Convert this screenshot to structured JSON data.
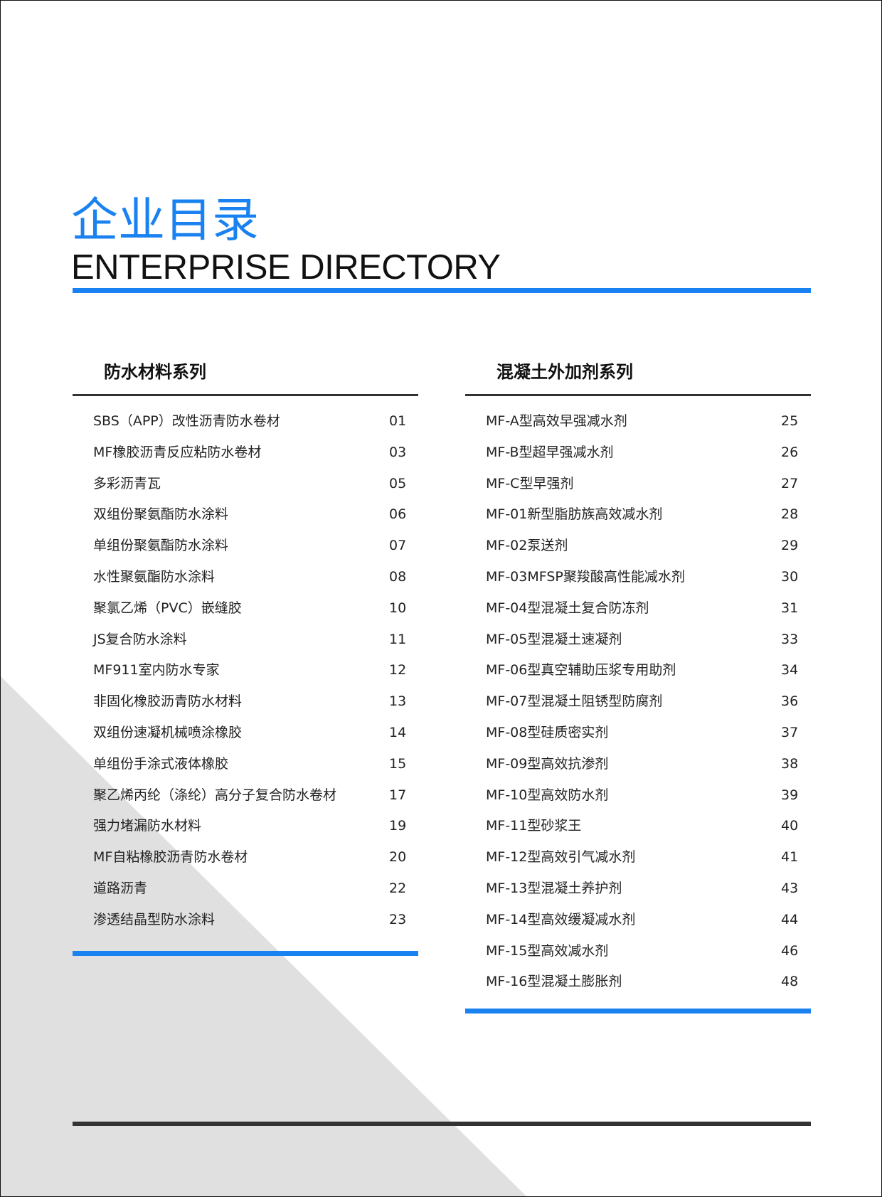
{
  "header": {
    "title_cn": "企业目录",
    "title_en": "ENTERPRISE DIRECTORY",
    "accent_color": "#1a82f0"
  },
  "sections": [
    {
      "title": "防水材料系列",
      "items": [
        {
          "label": "SBS（APP）改性沥青防水卷材",
          "page": "01"
        },
        {
          "label": "MF橡胶沥青反应粘防水卷材",
          "page": "03"
        },
        {
          "label": "多彩沥青瓦",
          "page": "05"
        },
        {
          "label": "双组份聚氨酯防水涂料",
          "page": "06"
        },
        {
          "label": "单组份聚氨酯防水涂料",
          "page": "07"
        },
        {
          "label": "水性聚氨酯防水涂料",
          "page": "08"
        },
        {
          "label": "聚氯乙烯（PVC）嵌缝胶",
          "page": "10"
        },
        {
          "label": "JS复合防水涂料",
          "page": "11"
        },
        {
          "label": "MF911室内防水专家",
          "page": "12"
        },
        {
          "label": "非固化橡胶沥青防水材料",
          "page": "13"
        },
        {
          "label": "双组份速凝机械喷涂橡胶",
          "page": "14"
        },
        {
          "label": "单组份手涂式液体橡胶",
          "page": "15"
        },
        {
          "label": "聚乙烯丙纶（涤纶）高分子复合防水卷材",
          "page": "17"
        },
        {
          "label": "强力堵漏防水材料",
          "page": "19"
        },
        {
          "label": "MF自粘橡胶沥青防水卷材",
          "page": "20"
        },
        {
          "label": "道路沥青",
          "page": "22"
        },
        {
          "label": "渗透结晶型防水涂料",
          "page": "23"
        }
      ]
    },
    {
      "title": "混凝土外加剂系列",
      "items": [
        {
          "label": "MF-A型高效早强减水剂",
          "page": "25"
        },
        {
          "label": "MF-B型超早强减水剂",
          "page": "26"
        },
        {
          "label": "MF-C型早强剂",
          "page": "27"
        },
        {
          "label": "MF-01新型脂肪族高效减水剂",
          "page": "28"
        },
        {
          "label": "MF-02泵送剂",
          "page": "29"
        },
        {
          "label": "MF-03MFSP聚羧酸高性能减水剂",
          "page": "30"
        },
        {
          "label": "MF-04型混凝土复合防冻剂",
          "page": "31"
        },
        {
          "label": "MF-05型混凝土速凝剂",
          "page": "33"
        },
        {
          "label": "MF-06型真空辅助压浆专用助剂",
          "page": "34"
        },
        {
          "label": "MF-07型混凝土阻锈型防腐剂",
          "page": "36"
        },
        {
          "label": "MF-08型硅质密实剂",
          "page": "37"
        },
        {
          "label": "MF-09型高效抗渗剂",
          "page": "38"
        },
        {
          "label": "MF-10型高效防水剂",
          "page": "39"
        },
        {
          "label": "MF-11型砂浆王",
          "page": "40"
        },
        {
          "label": "MF-12型高效引气减水剂",
          "page": "41"
        },
        {
          "label": "MF-13型混凝土养护剂",
          "page": "43"
        },
        {
          "label": "MF-14型高效缓凝减水剂",
          "page": "44"
        },
        {
          "label": "MF-15型高效减水剂",
          "page": "46"
        },
        {
          "label": "MF-16型混凝土膨胀剂",
          "page": "48"
        }
      ]
    }
  ]
}
